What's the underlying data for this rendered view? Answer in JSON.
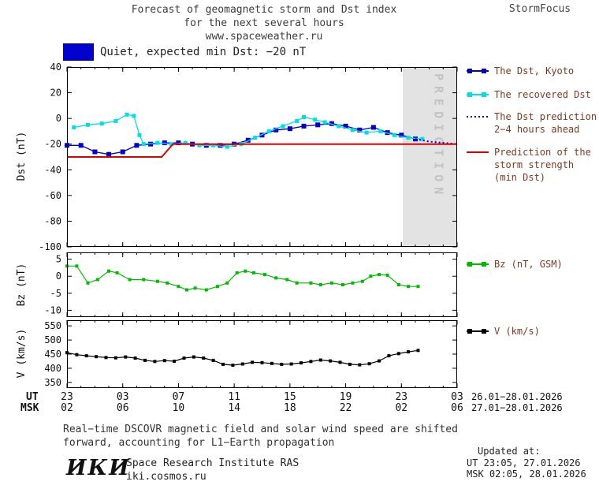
{
  "header": {
    "title_line1": "Forecast of geomagnetic storm and Dst index",
    "title_line2": "for the next several hours",
    "title_line3": "www.spaceweather.ru",
    "brand": "StormFocus"
  },
  "status": {
    "label": "Quiet, expected min Dst: −20 nT",
    "swatch_color": "#0000cd"
  },
  "legend": {
    "dst_kyoto": "The Dst, Kyoto",
    "recovered": "The recovered Dst",
    "prediction_line1": "The Dst prediction",
    "prediction_line2": "2−4 hours ahead",
    "storm_line1": "Prediction of the",
    "storm_line2": "storm strength",
    "storm_line3": "(min Dst)",
    "bz": "Bz (nT, GSM)",
    "v": "V (km/s)"
  },
  "axis": {
    "ut_label": "UT",
    "msk_label": "MSK",
    "ut_dates": "26.01−28.01.2026",
    "msk_dates": "27.01−28.01.2026"
  },
  "footnote_line1": "Real−time DSCOVR magnetic field and solar wind speed are shifted",
  "footnote_line2": "forward, accounting for L1−Earth propagation",
  "footer": {
    "logo": "ИКИ",
    "institute": "Space Research Institute RAS",
    "site": "iki.cosmos.ru",
    "updated_label": "Updated at:",
    "updated_ut": "UT  23:05, 27.01.2026",
    "updated_msk": "MSK 02:05, 28.01.2026"
  },
  "chart_data": [
    {
      "type": "line",
      "ylabel": "Dst (nT)",
      "xlim": [
        0,
        28
      ],
      "ylim": [
        -100,
        40
      ],
      "yticks": [
        40,
        20,
        0,
        -20,
        -40,
        -60,
        -80,
        -100
      ],
      "xticks": [
        0,
        4,
        8,
        12,
        16,
        20,
        24,
        28
      ],
      "xminor": 1,
      "prediction_region": {
        "x_start": 24.1,
        "x_end": 28,
        "label": "PREDICTION",
        "color": "#e3e3e3",
        "text_color": "#c3c3c3"
      },
      "series": [
        {
          "name": "The Dst, Kyoto",
          "color": "#0000cd",
          "marker": "square",
          "marker_size": 6,
          "width": 1.3,
          "points": [
            [
              0,
              -21
            ],
            [
              1,
              -21
            ],
            [
              2,
              -26
            ],
            [
              3,
              -28
            ],
            [
              4,
              -26
            ],
            [
              5,
              -21
            ],
            [
              6,
              -20
            ],
            [
              7,
              -19
            ],
            [
              8,
              -19
            ],
            [
              9,
              -20
            ],
            [
              10,
              -21
            ],
            [
              11,
              -21
            ],
            [
              12,
              -20
            ],
            [
              13,
              -17
            ],
            [
              14,
              -13
            ],
            [
              15,
              -9
            ],
            [
              16,
              -8
            ],
            [
              17,
              -6
            ],
            [
              18,
              -5
            ],
            [
              19,
              -4
            ],
            [
              20,
              -6
            ],
            [
              21,
              -9
            ],
            [
              22,
              -7
            ],
            [
              23,
              -11
            ],
            [
              24,
              -13
            ],
            [
              25,
              -16
            ]
          ]
        },
        {
          "name": "The recovered Dst",
          "color": "#00dfe6",
          "marker": "square",
          "marker_size": 5,
          "width": 1.3,
          "points": [
            [
              0.5,
              -7
            ],
            [
              1.5,
              -5
            ],
            [
              2.5,
              -4
            ],
            [
              3.5,
              -2
            ],
            [
              4.3,
              3
            ],
            [
              4.8,
              2
            ],
            [
              5.2,
              -13
            ],
            [
              5.5,
              -20
            ],
            [
              6.5,
              -19
            ],
            [
              7.5,
              -20
            ],
            [
              8.5,
              -19
            ],
            [
              9.5,
              -21
            ],
            [
              10.5,
              -21
            ],
            [
              11.5,
              -22
            ],
            [
              12.5,
              -20
            ],
            [
              13.5,
              -15
            ],
            [
              14.5,
              -10
            ],
            [
              15.5,
              -6
            ],
            [
              16.5,
              -2
            ],
            [
              17,
              1
            ],
            [
              17.8,
              -1
            ],
            [
              18.5,
              -3
            ],
            [
              19.5,
              -6
            ],
            [
              20.5,
              -9
            ],
            [
              21.5,
              -11
            ],
            [
              22.5,
              -10
            ],
            [
              23.5,
              -13
            ],
            [
              24.5,
              -15
            ],
            [
              25.5,
              -16
            ]
          ]
        },
        {
          "name": "The Dst prediction 2−4 hours ahead",
          "color": "#0000cd",
          "style": "dotted",
          "marker": "none",
          "width": 2,
          "points": [
            [
              25,
              -16
            ],
            [
              26,
              -18
            ],
            [
              27,
              -19
            ],
            [
              28,
              -20
            ]
          ]
        },
        {
          "name": "Prediction of the storm strength (min Dst)",
          "color": "#dd0000",
          "marker": "none",
          "width": 2,
          "points": [
            [
              0,
              -30
            ],
            [
              6.8,
              -30
            ],
            [
              7.6,
              -20
            ],
            [
              28,
              -20
            ]
          ]
        }
      ]
    },
    {
      "type": "line",
      "ylabel": "Bz (nT)",
      "xlim": [
        0,
        28
      ],
      "ylim": [
        -12,
        7
      ],
      "yticks": [
        5,
        0,
        -5,
        -10
      ],
      "xticks": [
        0,
        4,
        8,
        12,
        16,
        20,
        24,
        28
      ],
      "xminor": 1,
      "series": [
        {
          "name": "Bz (nT, GSM)",
          "color": "#00bb00",
          "marker": "square",
          "marker_size": 4,
          "width": 1.2,
          "points": [
            [
              0,
              3
            ],
            [
              0.7,
              3
            ],
            [
              1.5,
              -2
            ],
            [
              2.2,
              -1
            ],
            [
              3,
              1.5
            ],
            [
              3.6,
              1
            ],
            [
              4.5,
              -1
            ],
            [
              5.5,
              -1
            ],
            [
              6.5,
              -1.5
            ],
            [
              7.2,
              -2
            ],
            [
              8,
              -3
            ],
            [
              8.6,
              -4
            ],
            [
              9.2,
              -3.5
            ],
            [
              10,
              -4
            ],
            [
              10.8,
              -3
            ],
            [
              11.5,
              -2
            ],
            [
              12.2,
              1
            ],
            [
              12.8,
              1.5
            ],
            [
              13.4,
              1
            ],
            [
              14.2,
              0.5
            ],
            [
              15,
              -0.5
            ],
            [
              15.8,
              -1
            ],
            [
              16.5,
              -2
            ],
            [
              17.5,
              -2
            ],
            [
              18.2,
              -2.5
            ],
            [
              19,
              -2
            ],
            [
              19.8,
              -2.5
            ],
            [
              20.5,
              -2
            ],
            [
              21.2,
              -1.5
            ],
            [
              21.8,
              0
            ],
            [
              22.4,
              0.5
            ],
            [
              23,
              0.3
            ],
            [
              23.8,
              -2.5
            ],
            [
              24.5,
              -3
            ],
            [
              25.2,
              -3
            ]
          ]
        }
      ]
    },
    {
      "type": "line",
      "ylabel": "V (km/s)",
      "xlim": [
        0,
        28
      ],
      "ylim": [
        330,
        570
      ],
      "yticks": [
        550,
        500,
        450,
        400,
        350
      ],
      "xticks": [
        0,
        4,
        8,
        12,
        16,
        20,
        24,
        28
      ],
      "xminor": 1,
      "xtick_labels_ut": [
        "23",
        "03",
        "07",
        "11",
        "15",
        "19",
        "23",
        "03"
      ],
      "xtick_labels_msk": [
        "02",
        "06",
        "10",
        "14",
        "18",
        "22",
        "02",
        "06"
      ],
      "series": [
        {
          "name": "V (km/s)",
          "color": "#000000",
          "marker": "square",
          "marker_size": 4,
          "width": 1.2,
          "points": [
            [
              0,
              455
            ],
            [
              0.7,
              448
            ],
            [
              1.4,
              444
            ],
            [
              2.1,
              441
            ],
            [
              2.8,
              438
            ],
            [
              3.5,
              437
            ],
            [
              4.2,
              440
            ],
            [
              4.9,
              436
            ],
            [
              5.6,
              428
            ],
            [
              6.3,
              424
            ],
            [
              7,
              427
            ],
            [
              7.7,
              425
            ],
            [
              8.4,
              436
            ],
            [
              9.1,
              440
            ],
            [
              9.8,
              436
            ],
            [
              10.5,
              428
            ],
            [
              11.2,
              414
            ],
            [
              11.9,
              411
            ],
            [
              12.6,
              415
            ],
            [
              13.3,
              421
            ],
            [
              14,
              420
            ],
            [
              14.7,
              417
            ],
            [
              15.4,
              414
            ],
            [
              16.1,
              415
            ],
            [
              16.8,
              419
            ],
            [
              17.5,
              424
            ],
            [
              18.2,
              429
            ],
            [
              18.9,
              426
            ],
            [
              19.6,
              421
            ],
            [
              20.3,
              414
            ],
            [
              21,
              412
            ],
            [
              21.7,
              416
            ],
            [
              22.4,
              426
            ],
            [
              23.1,
              444
            ],
            [
              23.8,
              452
            ],
            [
              24.5,
              458
            ],
            [
              25.2,
              463
            ]
          ]
        }
      ]
    }
  ]
}
